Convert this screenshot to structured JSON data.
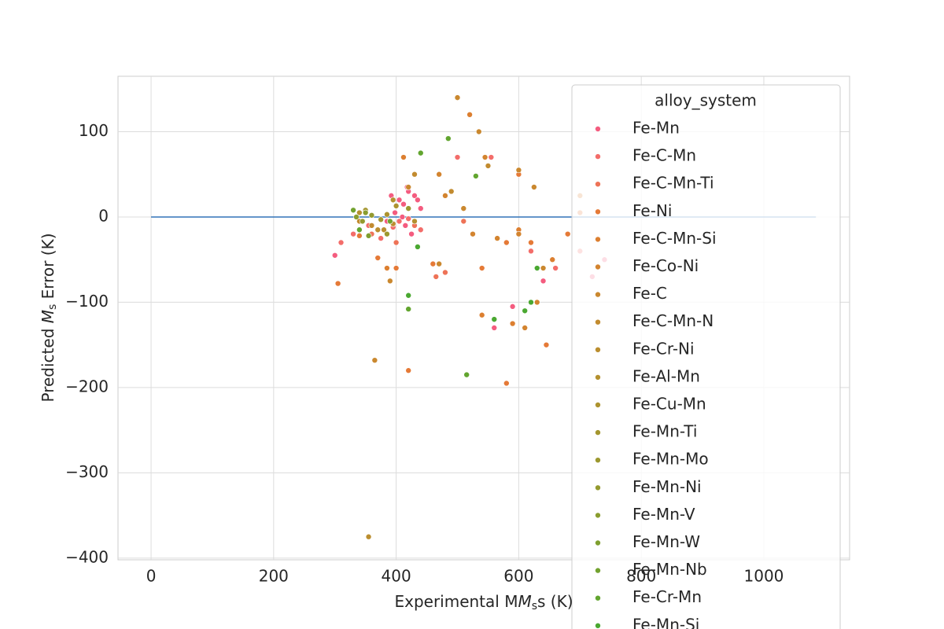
{
  "chart_data": {
    "type": "scatter",
    "xlabel": {
      "prefix": "Experimental M",
      "symbol": "M",
      "subscript": "s",
      "suffix": "s (K)"
    },
    "ylabel": {
      "prefix": "Predicted ",
      "symbol": "M",
      "subscript": "s",
      "suffix": " Error (K)"
    },
    "xlim": [
      -54,
      1140
    ],
    "ylim": [
      -402,
      165
    ],
    "xticks": [
      0,
      200,
      400,
      600,
      800,
      1000
    ],
    "yticks": [
      {
        "value": -400,
        "label": "−400"
      },
      {
        "value": -300,
        "label": "−300"
      },
      {
        "value": -200,
        "label": "−200"
      },
      {
        "value": -100,
        "label": "−100"
      },
      0,
      100
    ],
    "grid": true,
    "reference_line": {
      "x": [
        0,
        1085
      ],
      "y": [
        0,
        0
      ],
      "color": "#3274b8"
    },
    "legend": {
      "title": "alloy_system",
      "corner": "upper-right"
    },
    "series": [
      {
        "name": "Fe-Mn",
        "color": "#f45c7f",
        "x": [
          405,
          412,
          420,
          398,
          430,
          385,
          440,
          415,
          425,
          392,
          410,
          435,
          300,
          345,
          380,
          418,
          560,
          590,
          640,
          720,
          740
        ],
        "values": [
          20,
          15,
          30,
          5,
          25,
          -5,
          10,
          -10,
          -20,
          25,
          0,
          20,
          -45,
          -5,
          -15,
          35,
          -130,
          -105,
          -75,
          -70,
          -50
        ]
      },
      {
        "name": "Fe-C-Mn",
        "color": "#f36d6a",
        "x": [
          310,
          330,
          355,
          375,
          395,
          405,
          420,
          440,
          500,
          555,
          620,
          660,
          700
        ],
        "values": [
          -30,
          -20,
          -10,
          -25,
          -12,
          -5,
          -2,
          -15,
          70,
          70,
          -40,
          -60,
          -40
        ]
      },
      {
        "name": "Fe-C-Mn-Ti",
        "color": "#ee7357",
        "x": [
          360,
          400,
          430,
          465,
          510,
          480
        ],
        "values": [
          -20,
          -30,
          -10,
          -70,
          -5,
          -65
        ]
      },
      {
        "name": "Fe-Ni",
        "color": "#e57a37",
        "x": [
          305,
          340,
          370,
          400,
          420,
          460,
          540,
          580,
          600,
          620,
          645,
          680,
          700,
          580
        ],
        "values": [
          -78,
          -22,
          -48,
          -60,
          -180,
          -55,
          -60,
          -30,
          50,
          -30,
          -150,
          -20,
          5,
          -195
        ]
      },
      {
        "name": "Fe-C-Mn-Si",
        "color": "#dc7f30",
        "x": [
          385,
          412,
          520,
          540,
          590,
          600,
          655,
          700
        ],
        "values": [
          -60,
          70,
          120,
          -115,
          -125,
          -15,
          -50,
          25
        ]
      },
      {
        "name": "Fe-Co-Ni",
        "color": "#d3842f",
        "x": [
          470,
          480,
          525,
          545,
          565,
          600,
          610,
          630
        ],
        "values": [
          50,
          25,
          -20,
          70,
          -25,
          -20,
          -130,
          -100
        ]
      },
      {
        "name": "Fe-C",
        "color": "#ca882f",
        "x": [
          365,
          390,
          420,
          470,
          500,
          510,
          535,
          600,
          625,
          640
        ],
        "values": [
          -168,
          -75,
          35,
          -55,
          140,
          10,
          100,
          55,
          35,
          -60
        ]
      },
      {
        "name": "Fe-C-Mn-N",
        "color": "#c28b2f",
        "x": [
          340,
          360,
          430,
          490,
          550
        ],
        "values": [
          -5,
          -10,
          50,
          30,
          60
        ]
      },
      {
        "name": "Fe-Cr-Ni",
        "color": "#bb8e2f",
        "x": [
          355,
          370,
          380,
          395
        ],
        "values": [
          -375,
          -15,
          -15,
          -8
        ]
      },
      {
        "name": "Fe-Al-Mn",
        "color": "#b4912f",
        "x": [
          340,
          395,
          430
        ],
        "values": [
          5,
          20,
          -5
        ]
      },
      {
        "name": "Fe-Cu-Mn",
        "color": "#ad932f",
        "x": [
          385,
          400
        ],
        "values": [
          3,
          13
        ]
      },
      {
        "name": "Fe-Mn-Ti",
        "color": "#a4962f",
        "x": [
          350,
          375
        ],
        "values": [
          8,
          -3
        ]
      },
      {
        "name": "Fe-Mn-Mo",
        "color": "#9c982f",
        "x": [
          385,
          420
        ],
        "values": [
          -20,
          10
        ]
      },
      {
        "name": "Fe-Mn-Ni",
        "color": "#949a2f",
        "x": [
          345,
          360
        ],
        "values": [
          -5,
          2
        ]
      },
      {
        "name": "Fe-Mn-V",
        "color": "#8a9d2f",
        "x": [
          335,
          350
        ],
        "values": [
          0,
          5
        ]
      },
      {
        "name": "Fe-Mn-W",
        "color": "#7f9f2f",
        "x": [
          355
        ],
        "values": [
          -22
        ]
      },
      {
        "name": "Fe-Mn-Nb",
        "color": "#72a22f",
        "x": [
          330,
          390
        ],
        "values": [
          8,
          -5
        ]
      },
      {
        "name": "Fe-Cr-Mn",
        "color": "#62a52f",
        "x": [
          340,
          420,
          440,
          485,
          515,
          530
        ],
        "values": [
          -15,
          -108,
          75,
          92,
          -185,
          48
        ]
      },
      {
        "name": "Fe-Mn-Si",
        "color": "#4aa831",
        "x": [
          420,
          435,
          560,
          610,
          620,
          630
        ],
        "values": [
          -92,
          -35,
          -120,
          -110,
          -100,
          -60
        ]
      }
    ]
  }
}
